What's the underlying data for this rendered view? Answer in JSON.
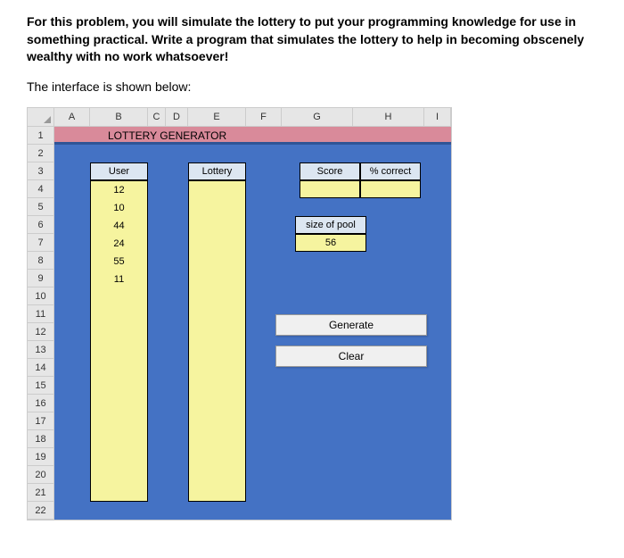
{
  "intro_text": "For this problem, you will simulate the lottery to put your programming knowledge for use in something practical. Write a program that simulates the lottery to help in becoming obscenely wealthy with no work whatsoever!",
  "subintro_text": "The interface is shown below:",
  "spreadsheet": {
    "columns": [
      "A",
      "B",
      "C",
      "D",
      "E",
      "F",
      "G",
      "H",
      "I"
    ],
    "row_count": 22,
    "title": "LOTTERY GENERATOR",
    "title_bg": "#d98a9a",
    "separator_color": "#2f5496",
    "blue_bg": "#4472c4",
    "header_bg": "#dce6f1",
    "yellow_bg": "#f6f49f",
    "headers": {
      "user": "User",
      "lottery": "Lottery",
      "score": "Score",
      "pct_correct": "% correct",
      "size_pool": "size of pool"
    },
    "user_values": [
      "12",
      "10",
      "44",
      "24",
      "55",
      "11"
    ],
    "size_pool_value": "56",
    "buttons": {
      "generate": "Generate",
      "clear": "Clear"
    }
  }
}
